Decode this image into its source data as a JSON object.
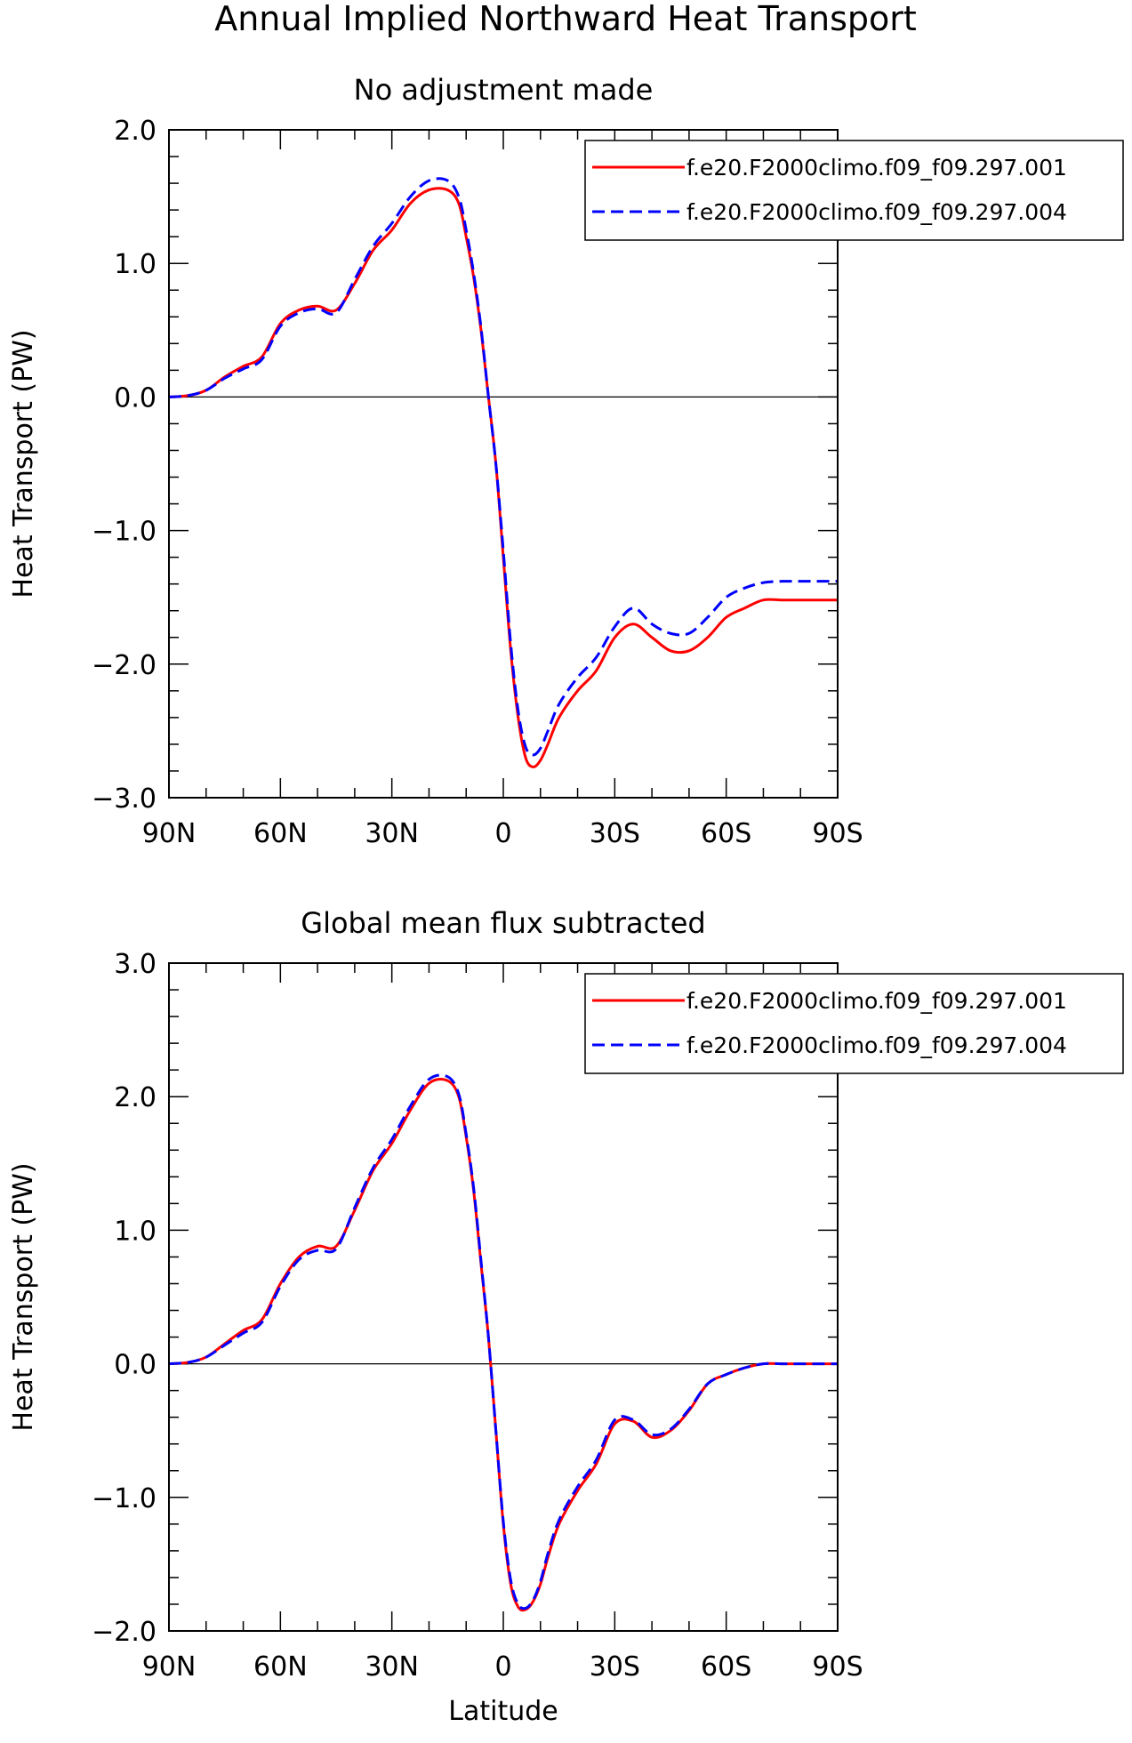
{
  "figure_title": "Annual Implied Northward Heat Transport",
  "xlabel": "Latitude",
  "chart_data": [
    {
      "type": "line",
      "title": "No adjustment made",
      "xlabel": "",
      "ylabel": "Heat Transport (PW)",
      "xlim": [
        90,
        -90
      ],
      "ylim": [
        -3.0,
        2.0
      ],
      "xticks": [
        90,
        60,
        30,
        0,
        -30,
        -60,
        -90
      ],
      "xtick_labels": [
        "90N",
        "60N",
        "30N",
        "0",
        "30S",
        "60S",
        "90S"
      ],
      "yticks": [
        -3.0,
        -2.0,
        -1.0,
        0.0,
        1.0,
        2.0
      ],
      "ytick_labels": [
        "−3.0",
        "−2.0",
        "−1.0",
        "0.0",
        "1.0",
        "2.0"
      ],
      "zero_line": true,
      "grid": false,
      "legend_position": "top-right",
      "series": [
        {
          "name": "f.e20.F2000climo.f09_f09.297.001",
          "color": "#ff0000",
          "dash": "solid",
          "x": [
            90,
            85,
            80,
            75,
            70,
            65,
            60,
            55,
            50,
            45,
            40,
            35,
            30,
            25,
            20,
            15,
            12,
            10,
            8,
            6,
            4,
            2,
            0,
            -2,
            -4,
            -6,
            -8,
            -10,
            -12,
            -15,
            -20,
            -25,
            -30,
            -35,
            -40,
            -45,
            -50,
            -55,
            -60,
            -65,
            -70,
            -75,
            -80,
            -85,
            -90
          ],
          "y": [
            0.0,
            0.01,
            0.05,
            0.15,
            0.23,
            0.3,
            0.55,
            0.65,
            0.68,
            0.65,
            0.85,
            1.1,
            1.25,
            1.45,
            1.55,
            1.55,
            1.45,
            1.2,
            0.9,
            0.5,
            0.0,
            -0.5,
            -1.2,
            -1.9,
            -2.4,
            -2.7,
            -2.77,
            -2.72,
            -2.6,
            -2.4,
            -2.2,
            -2.05,
            -1.8,
            -1.7,
            -1.8,
            -1.9,
            -1.9,
            -1.8,
            -1.65,
            -1.58,
            -1.52,
            -1.52,
            -1.52,
            -1.52,
            -1.52
          ]
        },
        {
          "name": "f.e20.F2000climo.f09_f09.297.004",
          "color": "#0000ff",
          "dash": "dashed",
          "x": [
            90,
            85,
            80,
            75,
            70,
            65,
            60,
            55,
            50,
            45,
            40,
            35,
            30,
            25,
            20,
            15,
            12,
            10,
            8,
            6,
            4,
            2,
            0,
            -2,
            -4,
            -6,
            -8,
            -10,
            -12,
            -15,
            -20,
            -25,
            -30,
            -35,
            -40,
            -45,
            -50,
            -55,
            -60,
            -65,
            -70,
            -75,
            -80,
            -85,
            -90
          ],
          "y": [
            0.0,
            0.01,
            0.05,
            0.14,
            0.21,
            0.28,
            0.53,
            0.63,
            0.66,
            0.63,
            0.88,
            1.13,
            1.3,
            1.5,
            1.62,
            1.62,
            1.5,
            1.25,
            0.93,
            0.52,
            0.0,
            -0.5,
            -1.15,
            -1.85,
            -2.35,
            -2.62,
            -2.68,
            -2.63,
            -2.5,
            -2.3,
            -2.1,
            -1.95,
            -1.72,
            -1.58,
            -1.7,
            -1.77,
            -1.77,
            -1.65,
            -1.5,
            -1.43,
            -1.39,
            -1.38,
            -1.38,
            -1.38,
            -1.38
          ]
        }
      ]
    },
    {
      "type": "line",
      "title": "Global mean flux subtracted",
      "xlabel": "Latitude",
      "ylabel": "Heat Transport (PW)",
      "xlim": [
        90,
        -90
      ],
      "ylim": [
        -2.0,
        3.0
      ],
      "xticks": [
        90,
        60,
        30,
        0,
        -30,
        -60,
        -90
      ],
      "xtick_labels": [
        "90N",
        "60N",
        "30N",
        "0",
        "30S",
        "60S",
        "90S"
      ],
      "yticks": [
        -2.0,
        -1.0,
        0.0,
        1.0,
        2.0,
        3.0
      ],
      "ytick_labels": [
        "−2.0",
        "−1.0",
        "0.0",
        "1.0",
        "2.0",
        "3.0"
      ],
      "zero_line": true,
      "grid": false,
      "legend_position": "top-right",
      "series": [
        {
          "name": "f.e20.F2000climo.f09_f09.297.001",
          "color": "#ff0000",
          "dash": "solid",
          "x": [
            90,
            85,
            80,
            75,
            70,
            65,
            60,
            55,
            50,
            45,
            40,
            35,
            30,
            25,
            20,
            15,
            12,
            10,
            8,
            6,
            4,
            2,
            0,
            -2,
            -4,
            -6,
            -8,
            -10,
            -12,
            -15,
            -20,
            -25,
            -30,
            -35,
            -40,
            -45,
            -50,
            -55,
            -60,
            -65,
            -70,
            -75,
            -80,
            -85,
            -90
          ],
          "y": [
            0.0,
            0.01,
            0.05,
            0.15,
            0.25,
            0.33,
            0.6,
            0.8,
            0.88,
            0.88,
            1.15,
            1.45,
            1.65,
            1.9,
            2.1,
            2.12,
            2.0,
            1.7,
            1.3,
            0.75,
            0.2,
            -0.5,
            -1.2,
            -1.65,
            -1.82,
            -1.84,
            -1.78,
            -1.65,
            -1.45,
            -1.2,
            -0.95,
            -0.75,
            -0.45,
            -0.43,
            -0.55,
            -0.5,
            -0.35,
            -0.15,
            -0.08,
            -0.03,
            0.0,
            0.0,
            0.0,
            0.0,
            0.0
          ]
        },
        {
          "name": "f.e20.F2000climo.f09_f09.297.004",
          "color": "#0000ff",
          "dash": "dashed",
          "x": [
            90,
            85,
            80,
            75,
            70,
            65,
            60,
            55,
            50,
            45,
            40,
            35,
            30,
            25,
            20,
            15,
            12,
            10,
            8,
            6,
            4,
            2,
            0,
            -2,
            -4,
            -6,
            -8,
            -10,
            -12,
            -15,
            -20,
            -25,
            -30,
            -35,
            -40,
            -45,
            -50,
            -55,
            -60,
            -65,
            -70,
            -75,
            -80,
            -85,
            -90
          ],
          "y": [
            0.0,
            0.01,
            0.05,
            0.14,
            0.23,
            0.31,
            0.58,
            0.78,
            0.85,
            0.86,
            1.17,
            1.47,
            1.68,
            1.93,
            2.13,
            2.15,
            2.02,
            1.72,
            1.32,
            0.77,
            0.2,
            -0.5,
            -1.18,
            -1.62,
            -1.8,
            -1.83,
            -1.77,
            -1.63,
            -1.42,
            -1.17,
            -0.92,
            -0.72,
            -0.42,
            -0.42,
            -0.53,
            -0.49,
            -0.34,
            -0.15,
            -0.08,
            -0.03,
            0.0,
            0.0,
            0.0,
            0.0,
            0.0
          ]
        }
      ]
    }
  ]
}
